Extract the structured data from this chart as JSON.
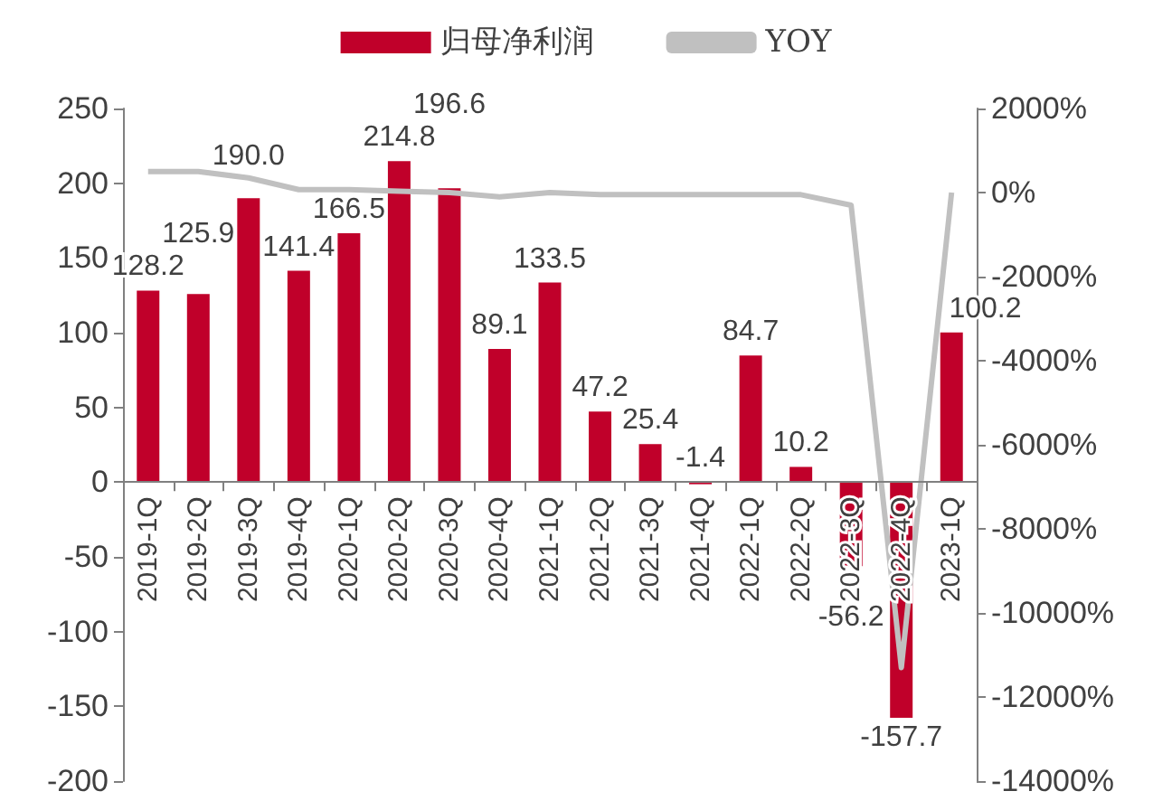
{
  "chart_data": {
    "type": "bar",
    "categories": [
      "2019-1Q",
      "2019-2Q",
      "2019-3Q",
      "2019-4Q",
      "2020-1Q",
      "2020-2Q",
      "2020-3Q",
      "2020-4Q",
      "2021-1Q",
      "2021-2Q",
      "2021-3Q",
      "2021-4Q",
      "2022-1Q",
      "2022-2Q",
      "2022-3Q",
      "2022-4Q",
      "2023-1Q"
    ],
    "series": [
      {
        "name": "归母净利润",
        "color": "#c0002a",
        "values": [
          128.2,
          125.9,
          190.0,
          141.4,
          166.5,
          214.8,
          196.6,
          89.1,
          133.5,
          47.2,
          25.4,
          -1.4,
          84.7,
          10.2,
          -56.2,
          -157.7,
          100.2
        ],
        "value_labels": [
          "128.2",
          "125.9",
          "190.0",
          "141.4",
          "166.5",
          "214.8",
          "196.6",
          "89.1",
          "133.5",
          "47.2",
          "25.4",
          "-1.4",
          "84.7",
          "10.2",
          "-56.2",
          "-157.7",
          "100.2"
        ]
      },
      {
        "name": "YOY",
        "type": "line",
        "axis": "y2",
        "color": "#c0c0c0",
        "marker": "none",
        "values": [
          500,
          500,
          350,
          70,
          70,
          30,
          0,
          -100,
          0,
          -50,
          -50,
          -50,
          -50,
          -50,
          -300,
          -11300,
          0
        ]
      }
    ],
    "legend": "top",
    "ylim": [
      -200,
      250
    ],
    "yticks": [
      -200,
      -150,
      -100,
      -50,
      0,
      50,
      100,
      150,
      200,
      250
    ],
    "y2lim": [
      -14000,
      2000
    ],
    "y2ticks": [
      {
        "value": -14000,
        "label": "-14000%"
      },
      {
        "value": -12000,
        "label": "-12000%"
      },
      {
        "value": -10000,
        "label": "-10000%"
      },
      {
        "value": -8000,
        "label": "-8000%"
      },
      {
        "value": -6000,
        "label": "-6000%"
      },
      {
        "value": -4000,
        "label": "-4000%"
      },
      {
        "value": -2000,
        "label": "-2000%"
      },
      {
        "value": 0,
        "label": "0%"
      },
      {
        "value": 2000,
        "label": "2000%"
      }
    ]
  }
}
